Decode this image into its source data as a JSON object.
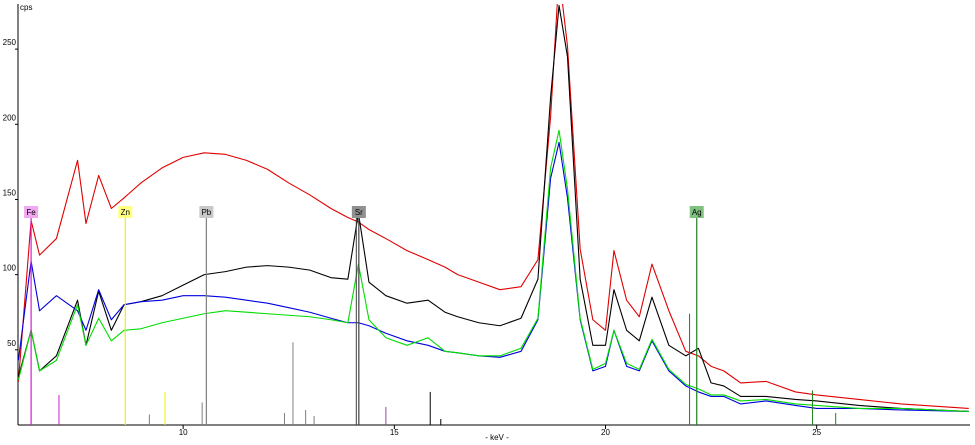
{
  "chart_data": {
    "type": "line",
    "y_label": "cps",
    "x_label": "- keV -",
    "x": [
      6.1,
      6.4,
      6.6,
      7.0,
      7.5,
      7.7,
      8.0,
      8.3,
      8.6,
      9,
      9.5,
      10,
      10.5,
      11,
      11.5,
      12,
      12.5,
      13,
      13.5,
      13.9,
      14.15,
      14.4,
      14.8,
      15.3,
      15.8,
      16.2,
      16.5,
      17,
      17.5,
      18,
      18.4,
      18.7,
      18.9,
      19.1,
      19.4,
      19.7,
      20.0,
      20.2,
      20.5,
      20.8,
      21.1,
      21.5,
      21.9,
      22.2,
      22.5,
      22.8,
      23.2,
      23.8,
      24.5,
      25,
      26,
      27,
      28.6
    ],
    "series": [
      {
        "color": "#e00000",
        "values": [
          29,
          136,
          113,
          124,
          176,
          134,
          166,
          144,
          151,
          161,
          171,
          178,
          181,
          180,
          176,
          170,
          161,
          153,
          144,
          138,
          135,
          130,
          124,
          116,
          110,
          105,
          100,
          95,
          90,
          92,
          110,
          205,
          300,
          252,
          117,
          70,
          63,
          116,
          83,
          72,
          107,
          76,
          49,
          46,
          39,
          36,
          28,
          29,
          22,
          20,
          17,
          14,
          11
        ]
      },
      {
        "color": "#000000",
        "values": [
          32,
          63,
          36,
          46,
          83,
          53,
          89,
          63,
          80,
          82,
          86,
          93,
          100,
          102,
          105,
          106,
          105,
          103,
          98,
          97,
          141,
          95,
          86,
          81,
          83,
          75,
          72,
          68,
          66,
          71,
          97,
          218,
          279,
          245,
          97,
          53,
          53,
          90,
          63,
          56,
          85,
          53,
          46,
          51,
          28,
          26,
          19,
          19,
          17,
          16,
          13,
          11,
          9
        ]
      },
      {
        "color": "#0000e0",
        "values": [
          43,
          109,
          76,
          86,
          76,
          63,
          90,
          70,
          80,
          82,
          83,
          86,
          86,
          85,
          83,
          81,
          78,
          75,
          71,
          68,
          68,
          66,
          61,
          56,
          53,
          49,
          48,
          46,
          45,
          49,
          70,
          164,
          188,
          151,
          70,
          36,
          39,
          63,
          39,
          36,
          56,
          36,
          26,
          22,
          19,
          19,
          14,
          16,
          13,
          11,
          11,
          10,
          9
        ]
      },
      {
        "color": "#00dd00",
        "values": [
          30,
          63,
          36,
          43,
          80,
          53,
          71,
          56,
          63,
          64,
          68,
          71,
          74,
          76,
          75,
          74,
          73,
          72,
          70,
          68,
          107,
          70,
          58,
          53,
          58,
          49,
          48,
          46,
          46,
          51,
          71,
          171,
          196,
          157,
          71,
          37,
          41,
          63,
          41,
          37,
          57,
          37,
          27,
          24,
          20,
          20,
          16,
          17,
          14,
          13,
          11,
          11,
          9
        ]
      }
    ],
    "markers": [
      {
        "label": "Fe",
        "energy": 6.4,
        "color": "#d020d0",
        "bg": "#f0a8f0"
      },
      {
        "label": "Zn",
        "energy": 8.63,
        "color": "#f0f000",
        "bg": "#ffff80"
      },
      {
        "label": "Pb",
        "energy": 10.55,
        "color": "#808080",
        "bg": "#c8c8c8"
      },
      {
        "label": "Sr",
        "energy": 14.16,
        "color": "#404040",
        "bg": "#909090"
      },
      {
        "label": "Ag",
        "energy": 22.16,
        "color": "#208020",
        "bg": "#80c080"
      }
    ],
    "lines": [
      {
        "x": 7.06,
        "height": 20,
        "color": "#d020d0"
      },
      {
        "x": 9.57,
        "height": 22,
        "color": "#f0f000"
      },
      {
        "x": 9.2,
        "height": 7,
        "color": "#808080"
      },
      {
        "x": 10.45,
        "height": 15,
        "color": "#808080"
      },
      {
        "x": 12.4,
        "height": 8,
        "color": "#808080"
      },
      {
        "x": 12.6,
        "height": 55,
        "color": "#808080"
      },
      {
        "x": 12.9,
        "height": 10,
        "color": "#808080"
      },
      {
        "x": 13.1,
        "height": 6,
        "color": "#808080"
      },
      {
        "x": 14.1,
        "height": 140,
        "color": "#404040"
      },
      {
        "x": 14.8,
        "height": 12,
        "color": "#a040a0"
      },
      {
        "x": 15.85,
        "height": 22,
        "color": "#000000"
      },
      {
        "x": 16.1,
        "height": 4,
        "color": "#000000"
      },
      {
        "x": 21.99,
        "height": 74,
        "color": "#208020"
      },
      {
        "x": 24.9,
        "height": 23,
        "color": "#208020"
      },
      {
        "x": 25.45,
        "height": 8,
        "color": "#208020"
      }
    ],
    "xlim": [
      6.09,
      28.63
    ],
    "ylim": [
      0,
      280
    ],
    "xticks": [
      10,
      15,
      20,
      25
    ],
    "yticks": [
      50,
      100,
      150,
      200,
      250
    ]
  }
}
